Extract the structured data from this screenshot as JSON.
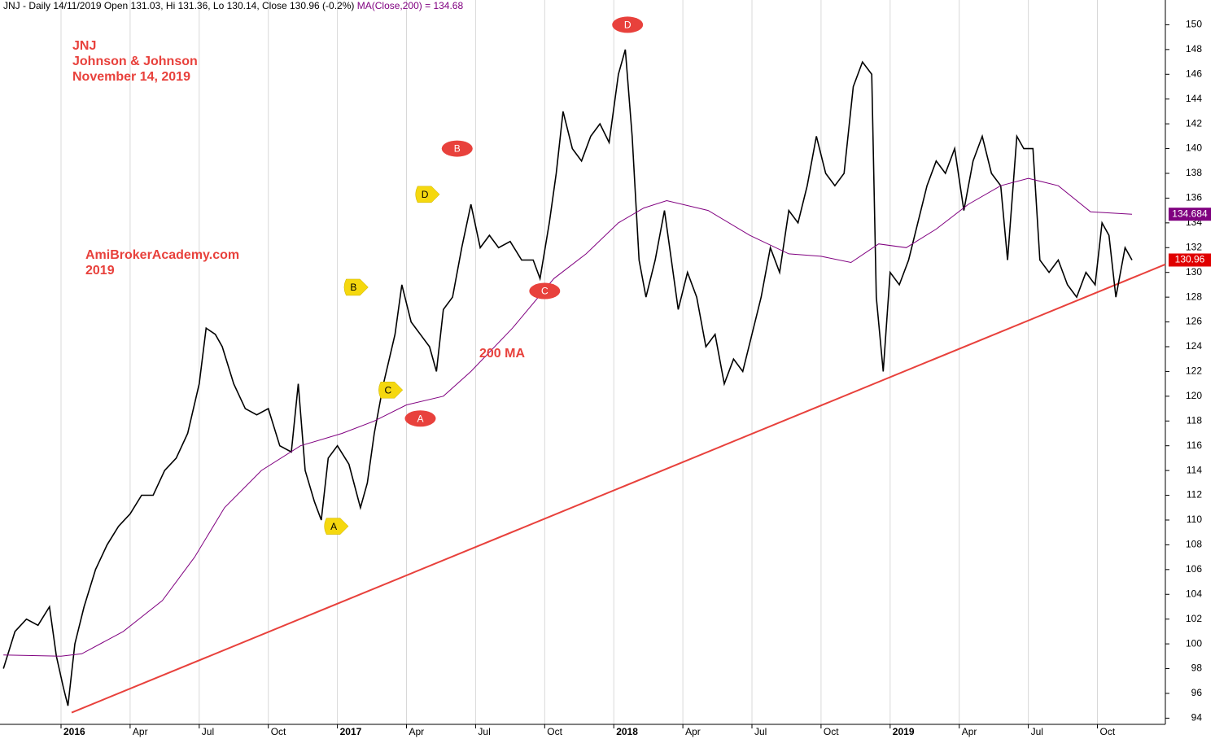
{
  "chart_data": {
    "type": "line",
    "header": {
      "quote": "JNJ - Daily 14/11/2019 Open 131.03, Hi 131.36, Lo 130.14, Close 130.96 (-0.2%)",
      "ma": "MA(Close,200) = 134.68"
    },
    "texts": [
      "JNJ",
      "Johnson & Johnson",
      "November 14, 2019",
      "AmiBrokerAcademy.com",
      "2019",
      "200 MA"
    ],
    "xlim": [
      -2.65,
      47.95
    ],
    "xticks": [
      {
        "value": 0,
        "label": "2016"
      },
      {
        "value": 3,
        "label": "Apr"
      },
      {
        "value": 6,
        "label": "Jul"
      },
      {
        "value": 9,
        "label": "Oct"
      },
      {
        "value": 12,
        "label": "2017"
      },
      {
        "value": 15,
        "label": "Apr"
      },
      {
        "value": 18,
        "label": "Jul"
      },
      {
        "value": 21,
        "label": "Oct"
      },
      {
        "value": 24,
        "label": "2018"
      },
      {
        "value": 27,
        "label": "Apr"
      },
      {
        "value": 30,
        "label": "Jul"
      },
      {
        "value": 33,
        "label": "Oct"
      },
      {
        "value": 36,
        "label": "2019"
      },
      {
        "value": 39,
        "label": "Apr"
      },
      {
        "value": 42,
        "label": "Jul"
      },
      {
        "value": 45,
        "label": "Oct"
      }
    ],
    "ylim": [
      93.5,
      152
    ],
    "yticks": [
      94,
      96,
      98,
      100,
      102,
      104,
      106,
      108,
      110,
      112,
      114,
      116,
      118,
      120,
      122,
      124,
      126,
      128,
      130,
      132,
      134,
      136,
      138,
      140,
      142,
      144,
      146,
      148,
      150
    ],
    "grid": true,
    "series": [
      {
        "color": "#000000",
        "last_label": "130.96",
        "last_color": "#e00000",
        "x": [
          -2.5,
          -2,
          -1.5,
          -1,
          -0.5,
          -0.2,
          0.1,
          0.3,
          0.6,
          1,
          1.5,
          2,
          2.5,
          3,
          3.5,
          4,
          4.5,
          5,
          5.5,
          6,
          6.3,
          6.7,
          7,
          7.5,
          8,
          8.5,
          9,
          9.5,
          10,
          10.3,
          10.6,
          11,
          11.3,
          11.6,
          12,
          12.5,
          13,
          13.3,
          13.6,
          14,
          14.5,
          14.8,
          15.2,
          15.6,
          16,
          16.3,
          16.6,
          17,
          17.4,
          17.8,
          18.2,
          18.6,
          19,
          19.5,
          20,
          20.5,
          20.8,
          21.2,
          21.5,
          21.8,
          22.2,
          22.6,
          23,
          23.4,
          23.8,
          24.2,
          24.5,
          24.8,
          25.1,
          25.4,
          25.8,
          26.2,
          26.5,
          26.8,
          27.2,
          27.6,
          28,
          28.4,
          28.8,
          29.2,
          29.6,
          30,
          30.4,
          30.8,
          31.2,
          31.6,
          32,
          32.4,
          32.8,
          33.2,
          33.6,
          34,
          34.4,
          34.8,
          35.2,
          35.4,
          35.7,
          36,
          36.4,
          36.8,
          37.2,
          37.6,
          38,
          38.4,
          38.8,
          39.2,
          39.6,
          40,
          40.4,
          40.8,
          41.1,
          41.5,
          41.8,
          42.2,
          42.5,
          42.9,
          43.3,
          43.7,
          44.1,
          44.5,
          44.9,
          45.2,
          45.5,
          45.8,
          46.2,
          46.5
        ],
        "values": [
          98,
          101,
          102,
          101.5,
          103,
          99,
          96.5,
          95,
          100,
          103,
          106,
          108,
          109.5,
          110.5,
          112,
          112,
          114,
          115,
          117,
          121,
          125.5,
          125,
          124,
          121,
          119,
          118.5,
          119,
          116,
          115.5,
          121,
          114,
          111.5,
          110,
          115,
          116,
          114.5,
          111,
          113,
          117,
          121,
          125,
          129,
          126,
          125,
          124,
          122,
          127,
          128,
          132,
          135.5,
          132,
          133,
          132,
          132.5,
          131,
          131,
          129.5,
          134,
          138,
          143,
          140,
          139,
          141,
          142,
          140.5,
          146,
          148,
          141,
          131,
          128,
          131,
          135,
          131,
          127,
          130,
          128,
          124,
          125,
          121,
          123,
          122,
          125,
          128,
          132,
          130,
          135,
          134,
          137,
          141,
          138,
          137,
          138,
          145,
          147,
          146,
          128,
          122,
          130,
          129,
          131,
          134,
          137,
          139,
          138,
          140,
          135,
          139,
          141,
          138,
          137,
          131,
          141,
          140,
          140,
          131,
          130,
          131,
          129,
          128,
          130,
          129,
          134,
          133,
          128,
          132,
          131
        ]
      },
      {
        "color": "#800080",
        "last_label": "134.684",
        "last_color": "#800080",
        "x": [
          -2.5,
          0,
          0.9,
          2.7,
          4.4,
          5.8,
          7.1,
          8.7,
          10.4,
          12.2,
          13.6,
          15,
          16.6,
          17.8,
          19.6,
          21.4,
          22.8,
          24.2,
          25.3,
          26.3,
          28.1,
          29.9,
          31.6,
          33,
          34.3,
          35.5,
          36.7,
          38,
          39.4,
          40.8,
          42,
          43.3,
          44.7,
          46.5
        ],
        "values": [
          99.1,
          99,
          99.2,
          101,
          103.5,
          107,
          111,
          114,
          116,
          117,
          118,
          119.3,
          120,
          122,
          125.5,
          129.5,
          131.5,
          134,
          135.2,
          135.8,
          135,
          133,
          131.5,
          131.3,
          130.8,
          132.3,
          132,
          133.5,
          135.5,
          137,
          137.6,
          137,
          134.9,
          134.7
        ]
      }
    ],
    "trendline": {
      "color": "#e8413c",
      "x": [
        0.46,
        47.95
      ],
      "values": [
        94.45,
        130.65
      ]
    },
    "markers": [
      {
        "label": "A",
        "style": "yellow",
        "x": 11.84,
        "value": 109.5
      },
      {
        "label": "B",
        "style": "yellow",
        "x": 12.7,
        "value": 128.8
      },
      {
        "label": "C",
        "style": "yellow",
        "x": 14.2,
        "value": 120.5
      },
      {
        "label": "D",
        "style": "yellow",
        "x": 15.8,
        "value": 136.3
      },
      {
        "label": "A",
        "style": "red",
        "x": 15.6,
        "value": 118.2
      },
      {
        "label": "B",
        "style": "red",
        "x": 17.2,
        "value": 140
      },
      {
        "label": "C",
        "style": "red",
        "x": 21.0,
        "value": 128.5
      },
      {
        "label": "D",
        "style": "red",
        "x": 24.6,
        "value": 150
      }
    ]
  }
}
